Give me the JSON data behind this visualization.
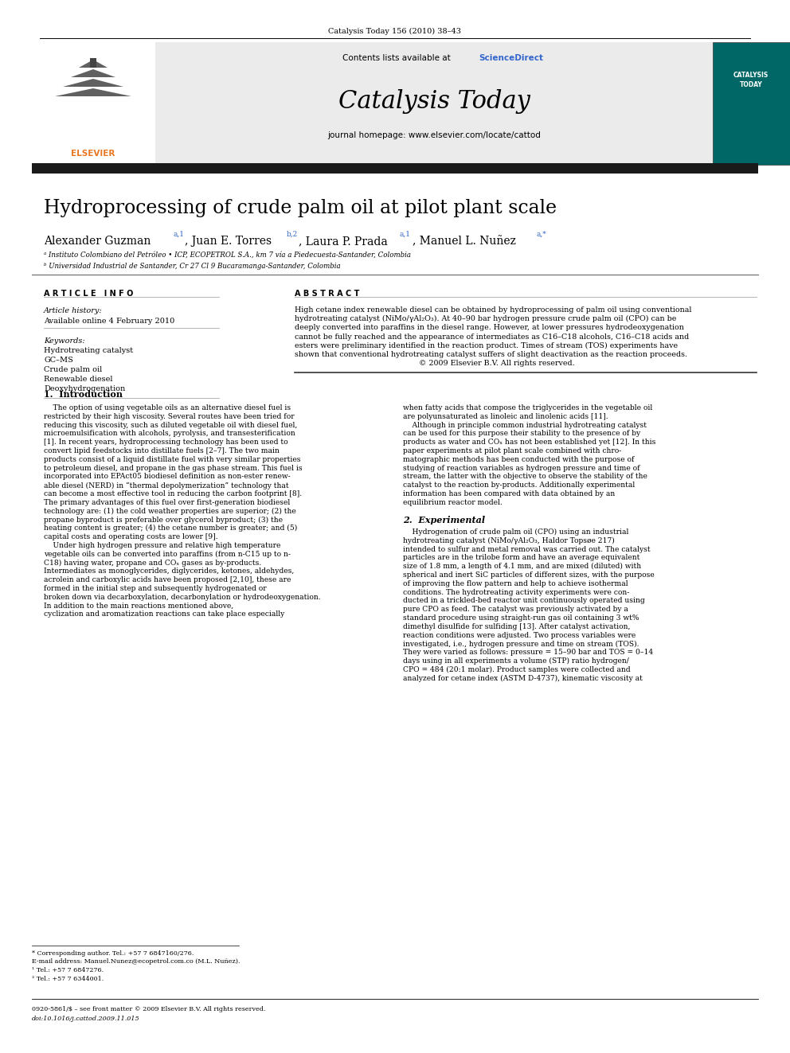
{
  "page_title": "Catalysis Today 156 (2010) 38–43",
  "journal_name": "Catalysis Today",
  "contents_line": "Contents lists available at ScienceDirect",
  "journal_homepage": "journal homepage: www.elsevier.com/locate/cattod",
  "paper_title": "Hydroprocessing of crude palm oil at pilot plant scale",
  "affil_a": "ᵃ Instituto Colombiano del Petróleo • ICP, ECOPETROL S.A., km 7 vía a Piedecuesta-Santander, Colombia",
  "affil_b": "ᵇ Universidad Industrial de Santander, Cr 27 Cl 9 Bucaramanga-Santander, Colombia",
  "article_info_header": "A R T I C L E   I N F O",
  "article_history_label": "Article history:",
  "article_history_value": "Available online 4 February 2010",
  "keywords_label": "Keywords:",
  "keywords": [
    "Hydrotreating catalyst",
    "GC–MS",
    "Crude palm oil",
    "Renewable diesel",
    "Deoxyhydrogenation"
  ],
  "abstract_header": "A B S T R A C T",
  "abstract_lines": [
    "High cetane index renewable diesel can be obtained by hydroprocessing of palm oil using conventional",
    "hydrotreating catalyst (NiMo/γAl₂O₃). At 40–90 bar hydrogen pressure crude palm oil (CPO) can be",
    "deeply converted into paraffins in the diesel range. However, at lower pressures hydrodeoxygenation",
    "cannot be fully reached and the appearance of intermediates as C16–C18 alcohols, C16–C18 acids and",
    "esters were preliminary identified in the reaction product. Times of stream (TOS) experiments have",
    "shown that conventional hydrotreating catalyst suffers of slight deactivation as the reaction proceeds.",
    "                                                    © 2009 Elsevier B.V. All rights reserved."
  ],
  "section1_title": "1.  Introduction",
  "intro_left": [
    "    The option of using vegetable oils as an alternative diesel fuel is",
    "restricted by their high viscosity. Several routes have been tried for",
    "reducing this viscosity, such as diluted vegetable oil with diesel fuel,",
    "microemulsification with alcohols, pyrolysis, and transesterification",
    "[1]. In recent years, hydroprocessing technology has been used to",
    "convert lipid feedstocks into distillate fuels [2–7]. The two main",
    "products consist of a liquid distillate fuel with very similar properties",
    "to petroleum diesel, and propane in the gas phase stream. This fuel is",
    "incorporated into EPAct05 biodiesel definition as non-ester renew-",
    "able diesel (NERD) in “thermal depolymerization” technology that",
    "can become a most effective tool in reducing the carbon footprint [8].",
    "The primary advantages of this fuel over first-generation biodiesel",
    "technology are: (1) the cold weather properties are superior; (2) the",
    "propane byproduct is preferable over glycerol byproduct; (3) the",
    "heating content is greater; (4) the cetane number is greater; and (5)",
    "capital costs and operating costs are lower [9].",
    "    Under high hydrogen pressure and relative high temperature",
    "vegetable oils can be converted into paraffins (from n-C15 up to n-",
    "C18) having water, propane and COₓ gases as by-products.",
    "Intermediates as monoglycerides, diglycerides, ketones, aldehydes,",
    "acrolein and carboxylic acids have been proposed [2,10], these are",
    "formed in the initial step and subsequently hydrogenated or",
    "broken down via decarboxylation, decarbonylation or hydrodeoxygenation.",
    "In addition to the main reactions mentioned above,",
    "cyclization and aromatization reactions can take place especially"
  ],
  "intro_right": [
    "when fatty acids that compose the triglycerides in the vegetable oil",
    "are polyunsaturated as linoleic and linolenic acids [11].",
    "    Although in principle common industrial hydrotreating catalyst",
    "can be used for this purpose their stability to the presence of by",
    "products as water and COₓ has not been established yet [12]. In this",
    "paper experiments at pilot plant scale combined with chro-",
    "matographic methods has been conducted with the purpose of",
    "studying of reaction variables as hydrogen pressure and time of",
    "stream, the latter with the objective to observe the stability of the",
    "catalyst to the reaction by-products. Additionally experimental",
    "information has been compared with data obtained by an",
    "equilibrium reactor model."
  ],
  "section2_title": "2.  Experimental",
  "section2_lines": [
    "    Hydrogenation of crude palm oil (CPO) using an industrial",
    "hydrotreating catalyst (NiMo/γAl₂O₃, Haldor Topsøe 217)",
    "intended to sulfur and metal removal was carried out. The catalyst",
    "particles are in the trilobe form and have an average equivalent",
    "size of 1.8 mm, a length of 4.1 mm, and are mixed (diluted) with",
    "spherical and inert SiC particles of different sizes, with the purpose",
    "of improving the flow pattern and help to achieve isothermal",
    "conditions. The hydrotreating activity experiments were con-",
    "ducted in a trickled-bed reactor unit continuously operated using",
    "pure CPO as feed. The catalyst was previously activated by a",
    "standard procedure using straight-run gas oil containing 3 wt%",
    "dimethyl disulfide for sulfiding [13]. After catalyst activation,",
    "reaction conditions were adjusted. Two process variables were",
    "investigated, i.e., hydrogen pressure and time on stream (TOS).",
    "They were varied as follows: pressure = 15–90 bar and TOS = 0–14",
    "days using in all experiments a volume (STP) ratio hydrogen/",
    "CPO = 484 (20:1 molar). Product samples were collected and",
    "analyzed for cetane index (ASTM D-4737), kinematic viscosity at"
  ],
  "footnote_star": "* Corresponding author. Tel.: +57 7 6847160/276.",
  "footnote_email": "E-mail address: Manuel.Nunez@ecopetrol.com.co (M.L. Nuñez).",
  "footnote_1": "¹ Tel.: +57 7 6847276.",
  "footnote_2": "² Tel.: +57 7 6344001.",
  "issn_line": "0920-5861/$ – see front matter © 2009 Elsevier B.V. All rights reserved.",
  "doi_line": "doi:10.1016/j.cattod.2009.11.015",
  "bg_color": "#ffffff",
  "black_bar_color": "#1a1a1a",
  "blue_color": "#3366cc",
  "orange_color": "#e87722",
  "teal_cover_color": "#2a8c8c",
  "grey_header_color": "#ebebeb"
}
